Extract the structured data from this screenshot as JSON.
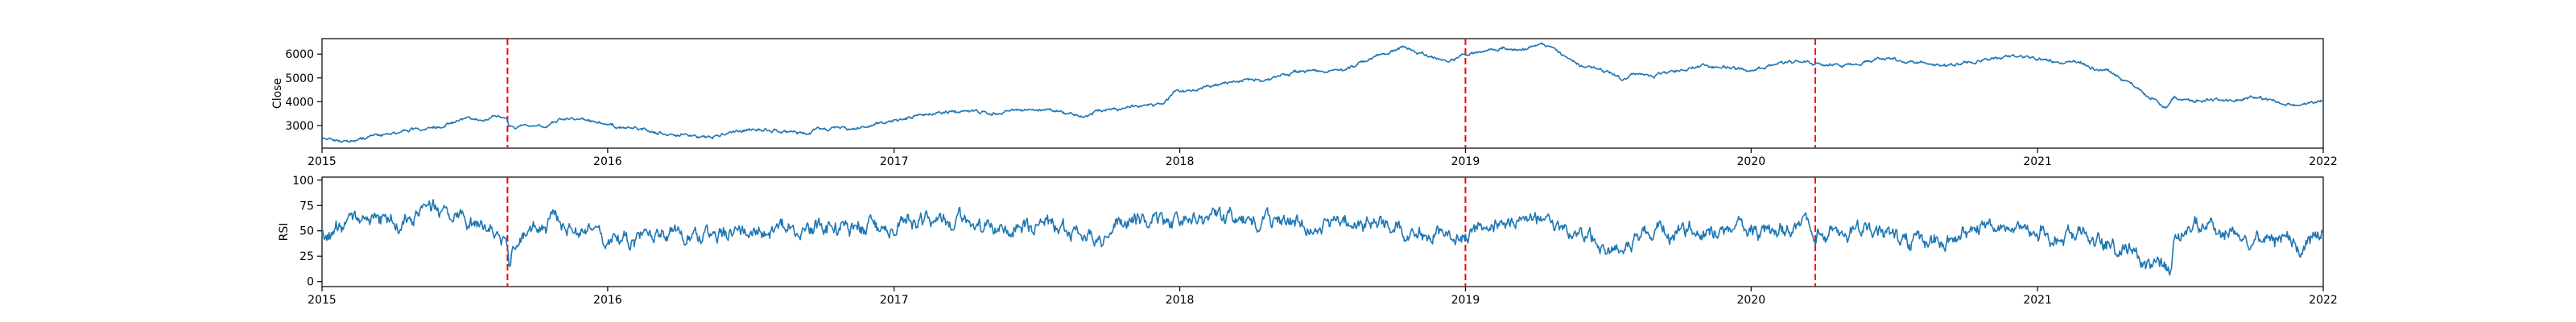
{
  "chart_data": [
    {
      "type": "line",
      "ylabel": "Close",
      "xlim": [
        "2015-01-01",
        "2022-01-01"
      ],
      "ylim": [
        2050,
        6650
      ],
      "yticks": [
        3000,
        4000,
        5000,
        6000
      ],
      "xticks": [
        "2015",
        "2016",
        "2017",
        "2018",
        "2019",
        "2020",
        "2021",
        "2022"
      ],
      "grid": false,
      "series": [
        {
          "color": "#1f77b4",
          "points": [
            [
              "2015-01-01",
              2480
            ],
            [
              "2015-01-20",
              2380
            ],
            [
              "2015-02-05",
              2300
            ],
            [
              "2015-02-25",
              2450
            ],
            [
              "2015-03-15",
              2550
            ],
            [
              "2015-04-05",
              2700
            ],
            [
              "2015-05-01",
              2800
            ],
            [
              "2015-05-25",
              2900
            ],
            [
              "2015-06-15",
              3100
            ],
            [
              "2015-07-05",
              3300
            ],
            [
              "2015-07-25",
              3250
            ],
            [
              "2015-08-15",
              3450
            ],
            [
              "2015-08-25",
              3300
            ],
            [
              "2015-08-28",
              2950
            ],
            [
              "2015-09-15",
              3000
            ],
            [
              "2015-10-05",
              2950
            ],
            [
              "2015-10-25",
              3150
            ],
            [
              "2015-11-10",
              3350
            ],
            [
              "2015-12-01",
              3200
            ],
            [
              "2015-12-20",
              3150
            ],
            [
              "2016-01-15",
              2950
            ],
            [
              "2016-02-10",
              2850
            ],
            [
              "2016-03-01",
              2700
            ],
            [
              "2016-04-01",
              2650
            ],
            [
              "2016-05-01",
              2500
            ],
            [
              "2016-06-01",
              2650
            ],
            [
              "2016-07-01",
              2850
            ],
            [
              "2016-08-01",
              2800
            ],
            [
              "2016-09-01",
              2750
            ],
            [
              "2016-10-01",
              2850
            ],
            [
              "2016-11-01",
              2900
            ],
            [
              "2016-12-01",
              3000
            ],
            [
              "2017-01-01",
              3200
            ],
            [
              "2017-02-01",
              3400
            ],
            [
              "2017-03-01",
              3600
            ],
            [
              "2017-04-01",
              3650
            ],
            [
              "2017-05-01",
              3500
            ],
            [
              "2017-06-01",
              3600
            ],
            [
              "2017-07-01",
              3700
            ],
            [
              "2017-08-01",
              3550
            ],
            [
              "2017-09-01",
              3400
            ],
            [
              "2017-09-20",
              3600
            ],
            [
              "2017-10-20",
              3700
            ],
            [
              "2017-11-15",
              3800
            ],
            [
              "2017-12-10",
              3850
            ],
            [
              "2017-12-25",
              4350
            ],
            [
              "2018-01-20",
              4500
            ],
            [
              "2018-02-15",
              4700
            ],
            [
              "2018-03-10",
              4800
            ],
            [
              "2018-04-01",
              4900
            ],
            [
              "2018-05-01",
              5000
            ],
            [
              "2018-06-01",
              5300
            ],
            [
              "2018-07-01",
              5250
            ],
            [
              "2018-08-01",
              5400
            ],
            [
              "2018-09-01",
              5800
            ],
            [
              "2018-09-25",
              6100
            ],
            [
              "2018-10-15",
              6300
            ],
            [
              "2018-11-10",
              6000
            ],
            [
              "2018-12-10",
              5700
            ],
            [
              "2019-01-01",
              6000
            ],
            [
              "2019-02-01",
              6100
            ],
            [
              "2019-02-20",
              6300
            ],
            [
              "2019-03-10",
              6100
            ],
            [
              "2019-04-01",
              6400
            ],
            [
              "2019-04-20",
              6300
            ],
            [
              "2019-05-15",
              5700
            ],
            [
              "2019-06-10",
              5400
            ],
            [
              "2019-07-01",
              5300
            ],
            [
              "2019-07-20",
              5000
            ],
            [
              "2019-08-10",
              5200
            ],
            [
              "2019-09-01",
              5100
            ],
            [
              "2019-10-01",
              5350
            ],
            [
              "2019-11-01",
              5500
            ],
            [
              "2019-12-01",
              5450
            ],
            [
              "2020-01-01",
              5350
            ],
            [
              "2020-02-01",
              5600
            ],
            [
              "2020-03-01",
              5700
            ],
            [
              "2020-04-01",
              5600
            ],
            [
              "2020-05-01",
              5500
            ],
            [
              "2020-06-01",
              5700
            ],
            [
              "2020-07-01",
              5800
            ],
            [
              "2020-08-01",
              5600
            ],
            [
              "2020-09-01",
              5500
            ],
            [
              "2020-10-01",
              5650
            ],
            [
              "2020-11-01",
              5750
            ],
            [
              "2020-12-01",
              6000
            ],
            [
              "2021-01-01",
              5800
            ],
            [
              "2021-02-01",
              5600
            ],
            [
              "2021-02-25",
              5650
            ],
            [
              "2021-03-15",
              5400
            ],
            [
              "2021-04-01",
              5300
            ],
            [
              "2021-05-01",
              4700
            ],
            [
              "2021-06-01",
              4100
            ],
            [
              "2021-06-15",
              3700
            ],
            [
              "2021-06-25",
              4150
            ],
            [
              "2021-07-15",
              4000
            ],
            [
              "2021-08-10",
              4100
            ],
            [
              "2021-09-01",
              4050
            ],
            [
              "2021-10-01",
              4200
            ],
            [
              "2021-11-01",
              4000
            ],
            [
              "2021-12-01",
              3850
            ],
            [
              "2022-01-01",
              4050
            ]
          ]
        }
      ],
      "markers": [
        "2015-08-26",
        "2019-01-01",
        "2020-03-23"
      ]
    },
    {
      "type": "line",
      "ylabel": "RSI",
      "xlim": [
        "2015-01-01",
        "2022-01-01"
      ],
      "ylim": [
        -5,
        103
      ],
      "yticks": [
        0,
        25,
        50,
        75,
        100
      ],
      "xticks": [
        "2015",
        "2016",
        "2017",
        "2018",
        "2019",
        "2020",
        "2021",
        "2022"
      ],
      "grid": false,
      "series": [
        {
          "color": "#1f77b4",
          "noise": 9,
          "points": [
            [
              "2015-01-01",
              45
            ],
            [
              "2015-02-01",
              55
            ],
            [
              "2015-03-01",
              62
            ],
            [
              "2015-04-01",
              58
            ],
            [
              "2015-05-01",
              65
            ],
            [
              "2015-06-01",
              72
            ],
            [
              "2015-07-01",
              60
            ],
            [
              "2015-08-01",
              55
            ],
            [
              "2015-08-24",
              40
            ],
            [
              "2015-08-28",
              20
            ],
            [
              "2015-09-10",
              45
            ],
            [
              "2015-10-01",
              55
            ],
            [
              "2015-11-01",
              60
            ],
            [
              "2015-12-01",
              48
            ],
            [
              "2016-01-01",
              40
            ],
            [
              "2016-03-01",
              45
            ],
            [
              "2016-05-01",
              42
            ],
            [
              "2016-07-01",
              50
            ],
            [
              "2016-09-01",
              50
            ],
            [
              "2016-11-01",
              55
            ],
            [
              "2017-01-01",
              58
            ],
            [
              "2017-03-01",
              62
            ],
            [
              "2017-05-01",
              52
            ],
            [
              "2017-07-01",
              55
            ],
            [
              "2017-09-01",
              50
            ],
            [
              "2017-10-01",
              45
            ],
            [
              "2017-11-01",
              62
            ],
            [
              "2018-01-01",
              62
            ],
            [
              "2018-03-01",
              60
            ],
            [
              "2018-05-01",
              58
            ],
            [
              "2018-07-01",
              55
            ],
            [
              "2018-09-01",
              58
            ],
            [
              "2018-11-01",
              52
            ],
            [
              "2018-12-20",
              40
            ],
            [
              "2019-01-01",
              50
            ],
            [
              "2019-03-01",
              62
            ],
            [
              "2019-05-01",
              55
            ],
            [
              "2019-06-01",
              42
            ],
            [
              "2019-07-01",
              35
            ],
            [
              "2019-08-01",
              35
            ],
            [
              "2019-09-01",
              50
            ],
            [
              "2019-10-15",
              48
            ],
            [
              "2019-12-01",
              52
            ],
            [
              "2020-01-01",
              50
            ],
            [
              "2020-02-01",
              55
            ],
            [
              "2020-03-01",
              52
            ],
            [
              "2020-04-01",
              48
            ],
            [
              "2020-05-01",
              50
            ],
            [
              "2020-06-01",
              52
            ],
            [
              "2020-07-01",
              48
            ],
            [
              "2020-08-01",
              40
            ],
            [
              "2020-09-01",
              38
            ],
            [
              "2020-10-01",
              52
            ],
            [
              "2020-11-01",
              55
            ],
            [
              "2020-12-01",
              58
            ],
            [
              "2021-01-01",
              50
            ],
            [
              "2021-02-01",
              48
            ],
            [
              "2021-03-01",
              45
            ],
            [
              "2021-04-01",
              40
            ],
            [
              "2021-05-01",
              30
            ],
            [
              "2021-06-01",
              18
            ],
            [
              "2021-06-20",
              8
            ],
            [
              "2021-06-26",
              45
            ],
            [
              "2021-07-15",
              50
            ],
            [
              "2021-08-15",
              55
            ],
            [
              "2021-09-15",
              48
            ],
            [
              "2021-10-15",
              45
            ],
            [
              "2021-12-01",
              40
            ],
            [
              "2022-01-01",
              50
            ]
          ]
        }
      ],
      "markers": [
        "2015-08-26",
        "2019-01-01",
        "2020-03-23"
      ]
    }
  ]
}
